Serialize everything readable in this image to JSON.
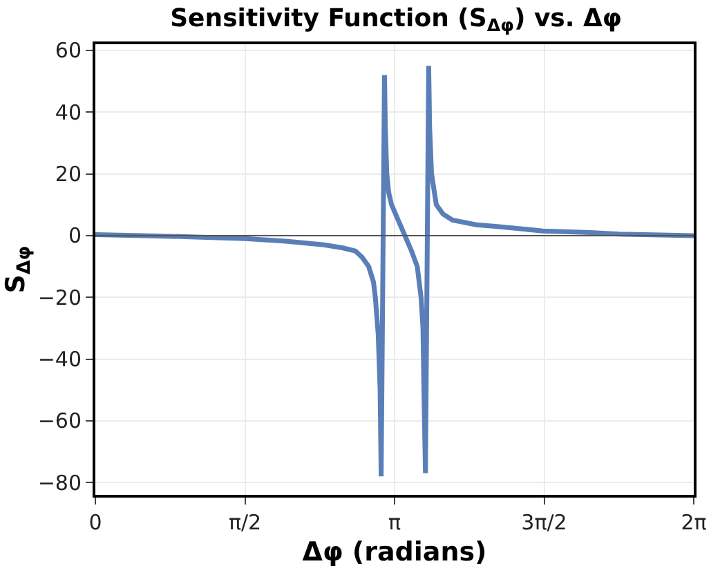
{
  "chart_data": {
    "type": "line",
    "title": "Sensitivity Function (S$_{Δφ}$) vs. Δφ",
    "xlabel": "Δφ (radians)",
    "ylabel": "S$_{Δφ}$",
    "x": [
      0,
      0.5,
      1.0,
      1.5708,
      2.0,
      2.4,
      2.6,
      2.73,
      2.8,
      2.87,
      2.92,
      2.94,
      2.97,
      2.99,
      3.001,
      3.036,
      3.045,
      3.06,
      3.08,
      3.11,
      3.18,
      3.25,
      3.32,
      3.38,
      3.42,
      3.44,
      3.45,
      3.466,
      3.5,
      3.51,
      3.53,
      3.58,
      3.65,
      3.75,
      4.0,
      4.2,
      4.7,
      5.2,
      5.5,
      6.2832
    ],
    "series": [
      {
        "color": "#5a7fb8",
        "values": [
          0.3,
          0,
          -0.4,
          -1,
          -1.8,
          -3,
          -4,
          -5,
          -7,
          -10,
          -15,
          -20,
          -32,
          -50,
          -78,
          52,
          35,
          20,
          14,
          10,
          5,
          0,
          -5,
          -10,
          -20,
          -30,
          -50,
          -77,
          55,
          35,
          20,
          10,
          7,
          5,
          3.5,
          3,
          1.5,
          1,
          0.5,
          0
        ]
      }
    ],
    "xlim": [
      0,
      6.2832
    ],
    "xticks": [
      0,
      {
        "value": 1.5708,
        "label": "π/2"
      },
      {
        "value": 3.1416,
        "label": "π"
      },
      {
        "value": 4.7124,
        "label": "3π/2"
      },
      {
        "value": 6.2832,
        "label": "2π"
      }
    ],
    "ylim": [
      -84,
      62
    ],
    "yticks": [
      -80,
      -60,
      -40,
      -20,
      0,
      20,
      40,
      60
    ],
    "ref_lines": [
      {
        "axis": "y",
        "value": 0,
        "color": "#555555"
      }
    ],
    "grid": true,
    "line_style": "solid",
    "marker": "none"
  }
}
